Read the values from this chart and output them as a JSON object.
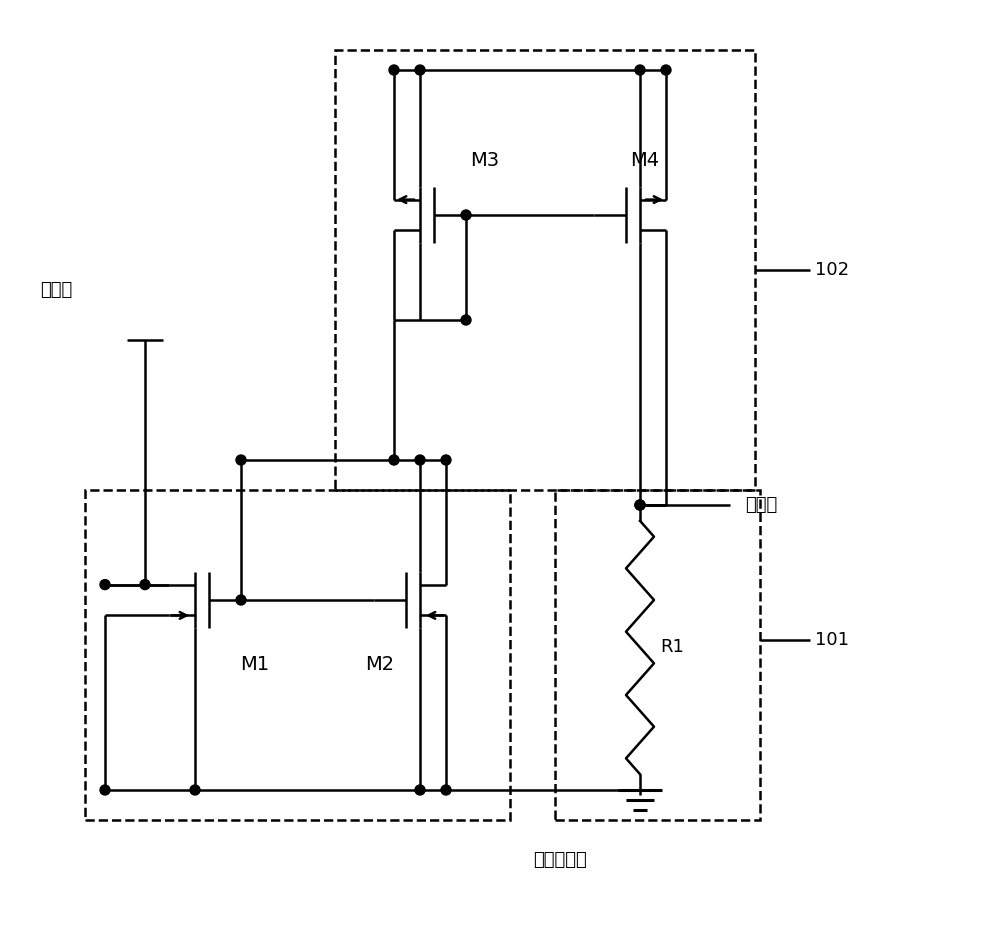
{
  "bg_color": "#ffffff",
  "line_color": "#000000",
  "fig_width": 10.0,
  "fig_height": 9.27,
  "labels": {
    "input": "输入端",
    "output": "输出端",
    "first_voltage": "第一电压端",
    "M1": "M1",
    "M2": "M2",
    "M3": "M3",
    "M4": "M4",
    "R1": "R1",
    "label_101": "101",
    "label_102": "102"
  }
}
